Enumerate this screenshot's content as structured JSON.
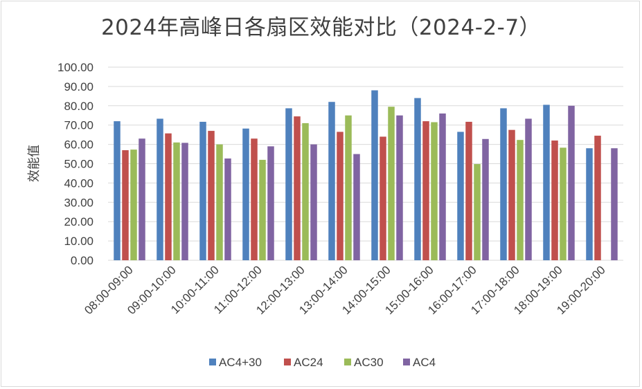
{
  "chart_data": {
    "type": "bar",
    "title": "2024年高峰日各扇区效能对比（2024-2-7）",
    "xlabel": "",
    "ylabel": "效能值",
    "ylim": [
      0,
      100
    ],
    "yticks": [
      "0.00",
      "10.00",
      "20.00",
      "30.00",
      "40.00",
      "50.00",
      "60.00",
      "70.00",
      "80.00",
      "90.00",
      "100.00"
    ],
    "categories": [
      "08:00-09:00",
      "09:00-10:00",
      "10:00-11:00",
      "11:00-12:00",
      "12:00-13:00",
      "13:00-14:00",
      "14:00-15:00",
      "15:00-16:00",
      "16:00-17:00",
      "17:00-18:00",
      "18:00-19:00",
      "19:00-20:00"
    ],
    "series": [
      {
        "name": "AC4+30",
        "color": "#4f81bd",
        "values": [
          72.0,
          73.3,
          71.7,
          68.2,
          78.7,
          82.0,
          88.0,
          84.0,
          66.5,
          78.7,
          80.5,
          58.0
        ]
      },
      {
        "name": "AC24",
        "color": "#c0504d",
        "values": [
          57.0,
          65.7,
          67.0,
          63.0,
          74.5,
          66.5,
          64.0,
          72.0,
          71.7,
          67.5,
          62.0,
          64.5
        ]
      },
      {
        "name": "AC30",
        "color": "#9bbb59",
        "values": [
          57.3,
          61.0,
          60.0,
          52.0,
          71.0,
          75.0,
          79.5,
          71.5,
          49.8,
          62.3,
          58.3,
          null
        ]
      },
      {
        "name": "AC4",
        "color": "#8064a2",
        "values": [
          63.0,
          60.8,
          52.7,
          59.0,
          60.0,
          55.0,
          75.0,
          76.0,
          62.8,
          73.3,
          80.0,
          58.0
        ]
      }
    ],
    "grid": true,
    "legend_position": "bottom"
  }
}
